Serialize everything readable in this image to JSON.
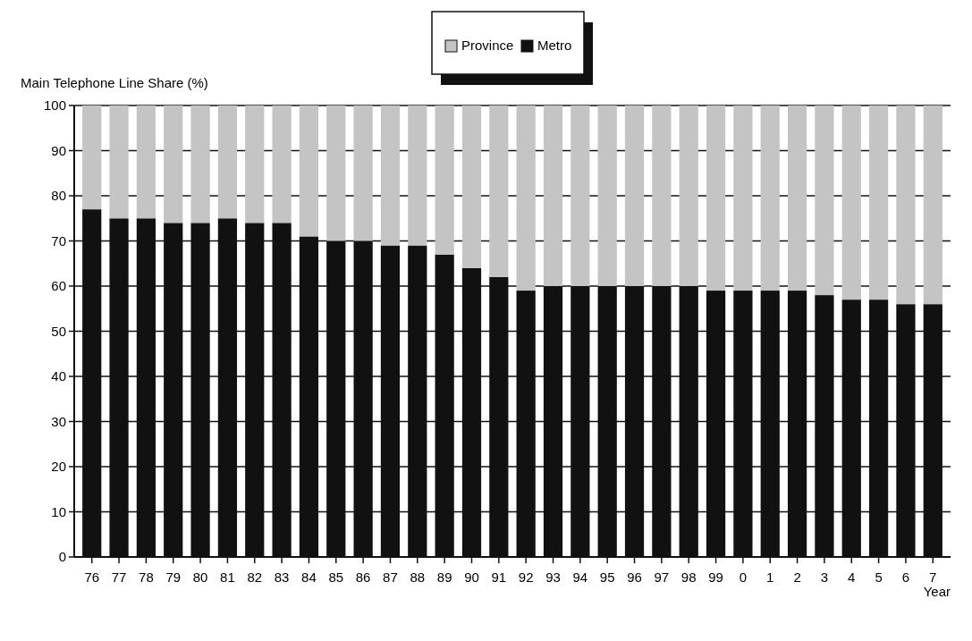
{
  "chart_data": {
    "type": "bar",
    "stacked": true,
    "ylabel": "Main Telephone Line Share (%)",
    "xlabel": "Year",
    "categories": [
      "76",
      "77",
      "78",
      "79",
      "80",
      "81",
      "82",
      "83",
      "84",
      "85",
      "86",
      "87",
      "88",
      "89",
      "90",
      "91",
      "92",
      "93",
      "94",
      "95",
      "96",
      "97",
      "98",
      "99",
      "0",
      "1",
      "2",
      "3",
      "4",
      "5",
      "6",
      "7"
    ],
    "series": [
      {
        "name": "Metro",
        "color": "#111111",
        "values": [
          77,
          75,
          75,
          74,
          74,
          75,
          74,
          74,
          71,
          70,
          70,
          69,
          69,
          67,
          64,
          62,
          59,
          60,
          60,
          60,
          60,
          60,
          60,
          59,
          59,
          59,
          59,
          58,
          57,
          57,
          56,
          56
        ]
      },
      {
        "name": "Province",
        "color": "#c4c4c4",
        "values": [
          23,
          25,
          25,
          26,
          26,
          25,
          26,
          26,
          29,
          30,
          30,
          31,
          31,
          33,
          36,
          38,
          41,
          40,
          40,
          40,
          40,
          40,
          40,
          41,
          41,
          41,
          41,
          42,
          43,
          43,
          44,
          44
        ]
      }
    ],
    "ylim": [
      0,
      100
    ],
    "yticks": [
      0,
      10,
      20,
      30,
      40,
      50,
      60,
      70,
      80,
      90,
      100
    ],
    "grid": "y",
    "legend": "top"
  }
}
